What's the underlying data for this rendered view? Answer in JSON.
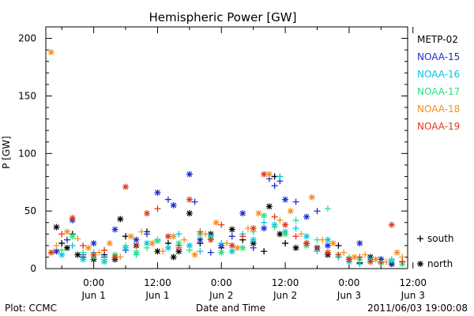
{
  "chart_data": {
    "type": "scatter",
    "title": "Hemispheric Power [GW]",
    "ylabel": "P [GW]",
    "xlabel": "Date and Time",
    "ylim": [
      0,
      210
    ],
    "y_ticks": [
      0,
      50,
      100,
      150,
      200
    ],
    "xlim_hours": [
      -9,
      59
    ],
    "x_ticks": [
      {
        "hours": 0,
        "time": "0:00",
        "date": "Jun 1"
      },
      {
        "hours": 12,
        "time": "12:00",
        "date": "Jun 1"
      },
      {
        "hours": 24,
        "time": "0:00",
        "date": "Jun 2"
      },
      {
        "hours": 36,
        "time": "12:00",
        "date": "Jun 2"
      },
      {
        "hours": 48,
        "time": "0:00",
        "date": "Jun 3"
      },
      {
        "hours": 60,
        "time": "12:00",
        "date": "Jun 3"
      }
    ],
    "hemisphere_markers": [
      {
        "symbol": "+",
        "label": "south"
      },
      {
        "symbol": "*",
        "label": "north"
      }
    ],
    "series": [
      {
        "name": "METP-02",
        "color": "#000000",
        "points": [
          [
            -7,
            36,
            "n"
          ],
          [
            -6,
            22,
            "s"
          ],
          [
            -5,
            18,
            "n"
          ],
          [
            -4,
            30,
            "s"
          ],
          [
            -3,
            12,
            "n"
          ],
          [
            -2,
            10,
            "s"
          ],
          [
            0,
            8,
            "n"
          ],
          [
            2,
            12,
            "s"
          ],
          [
            4,
            8,
            "n"
          ],
          [
            5,
            43,
            "n"
          ],
          [
            6,
            28,
            "s"
          ],
          [
            8,
            20,
            "n"
          ],
          [
            10,
            32,
            "s"
          ],
          [
            12,
            15,
            "n"
          ],
          [
            14,
            22,
            "s"
          ],
          [
            15,
            10,
            "n"
          ],
          [
            16,
            15,
            "n"
          ],
          [
            18,
            48,
            "n"
          ],
          [
            20,
            22,
            "s"
          ],
          [
            22,
            30,
            "n"
          ],
          [
            24,
            18,
            "s"
          ],
          [
            26,
            34,
            "n"
          ],
          [
            28,
            25,
            "s"
          ],
          [
            30,
            22,
            "n"
          ],
          [
            32,
            15,
            "s"
          ],
          [
            33,
            54,
            "n"
          ],
          [
            34,
            80,
            "s"
          ],
          [
            35,
            30,
            "n"
          ],
          [
            36,
            22,
            "s"
          ],
          [
            38,
            18,
            "n"
          ],
          [
            40,
            22,
            "s"
          ],
          [
            42,
            18,
            "n"
          ],
          [
            44,
            12,
            "n"
          ],
          [
            46,
            20,
            "s"
          ],
          [
            48,
            8,
            "n"
          ],
          [
            50,
            5,
            "s"
          ],
          [
            52,
            10,
            "n"
          ],
          [
            54,
            8,
            "s"
          ],
          [
            56,
            4,
            "n"
          ],
          [
            58,
            6,
            "s"
          ]
        ]
      },
      {
        "name": "NOAA-15",
        "color": "#1a2fcf",
        "points": [
          [
            -7,
            15,
            "n"
          ],
          [
            -5,
            25,
            "s"
          ],
          [
            -4,
            42,
            "n"
          ],
          [
            -2,
            12,
            "s"
          ],
          [
            0,
            22,
            "n"
          ],
          [
            2,
            10,
            "s"
          ],
          [
            4,
            34,
            "n"
          ],
          [
            6,
            16,
            "s"
          ],
          [
            8,
            25,
            "n"
          ],
          [
            10,
            30,
            "s"
          ],
          [
            12,
            66,
            "n"
          ],
          [
            14,
            60,
            "s"
          ],
          [
            15,
            55,
            "n"
          ],
          [
            16,
            20,
            "s"
          ],
          [
            18,
            82,
            "n"
          ],
          [
            19,
            58,
            "s"
          ],
          [
            20,
            25,
            "n"
          ],
          [
            22,
            14,
            "s"
          ],
          [
            24,
            20,
            "n"
          ],
          [
            26,
            28,
            "s"
          ],
          [
            28,
            48,
            "n"
          ],
          [
            30,
            18,
            "s"
          ],
          [
            32,
            35,
            "n"
          ],
          [
            33,
            78,
            "s"
          ],
          [
            34,
            72,
            "s"
          ],
          [
            35,
            76,
            "s"
          ],
          [
            36,
            60,
            "n"
          ],
          [
            38,
            58,
            "s"
          ],
          [
            40,
            45,
            "n"
          ],
          [
            42,
            50,
            "s"
          ],
          [
            44,
            20,
            "n"
          ],
          [
            46,
            10,
            "s"
          ],
          [
            48,
            8,
            "n"
          ],
          [
            50,
            22,
            "n"
          ],
          [
            52,
            6,
            "s"
          ],
          [
            54,
            8,
            "n"
          ],
          [
            56,
            4,
            "s"
          ]
        ]
      },
      {
        "name": "NOAA-16",
        "color": "#00c8e6",
        "points": [
          [
            -6,
            12,
            "n"
          ],
          [
            -4,
            20,
            "s"
          ],
          [
            -2,
            8,
            "n"
          ],
          [
            0,
            14,
            "s"
          ],
          [
            2,
            6,
            "n"
          ],
          [
            4,
            10,
            "s"
          ],
          [
            6,
            18,
            "n"
          ],
          [
            8,
            12,
            "s"
          ],
          [
            10,
            22,
            "n"
          ],
          [
            12,
            25,
            "s"
          ],
          [
            14,
            18,
            "n"
          ],
          [
            16,
            30,
            "s"
          ],
          [
            18,
            20,
            "n"
          ],
          [
            20,
            15,
            "s"
          ],
          [
            22,
            28,
            "n"
          ],
          [
            24,
            22,
            "s"
          ],
          [
            26,
            15,
            "n"
          ],
          [
            28,
            30,
            "s"
          ],
          [
            30,
            25,
            "n"
          ],
          [
            32,
            40,
            "s"
          ],
          [
            34,
            38,
            "n"
          ],
          [
            35,
            80,
            "s"
          ],
          [
            36,
            32,
            "n"
          ],
          [
            38,
            35,
            "s"
          ],
          [
            40,
            28,
            "n"
          ],
          [
            42,
            15,
            "s"
          ],
          [
            44,
            25,
            "n"
          ],
          [
            46,
            10,
            "s"
          ],
          [
            48,
            6,
            "n"
          ],
          [
            50,
            4,
            "s"
          ],
          [
            52,
            8,
            "n"
          ],
          [
            54,
            5,
            "s"
          ],
          [
            56,
            7,
            "n"
          ]
        ]
      },
      {
        "name": "NOAA-17",
        "color": "#2ee080",
        "points": [
          [
            -6,
            16,
            "s"
          ],
          [
            -4,
            28,
            "n"
          ],
          [
            -2,
            14,
            "s"
          ],
          [
            0,
            10,
            "n"
          ],
          [
            2,
            8,
            "s"
          ],
          [
            4,
            12,
            "n"
          ],
          [
            6,
            20,
            "s"
          ],
          [
            8,
            14,
            "n"
          ],
          [
            10,
            18,
            "s"
          ],
          [
            12,
            24,
            "n"
          ],
          [
            14,
            28,
            "s"
          ],
          [
            16,
            22,
            "n"
          ],
          [
            18,
            16,
            "s"
          ],
          [
            20,
            30,
            "n"
          ],
          [
            22,
            26,
            "s"
          ],
          [
            24,
            14,
            "n"
          ],
          [
            26,
            20,
            "s"
          ],
          [
            28,
            18,
            "n"
          ],
          [
            30,
            32,
            "s"
          ],
          [
            32,
            46,
            "n"
          ],
          [
            34,
            36,
            "s"
          ],
          [
            36,
            30,
            "n"
          ],
          [
            38,
            42,
            "s"
          ],
          [
            40,
            20,
            "n"
          ],
          [
            42,
            25,
            "s"
          ],
          [
            44,
            52,
            "s"
          ],
          [
            46,
            12,
            "n"
          ],
          [
            48,
            10,
            "s"
          ],
          [
            50,
            8,
            "n"
          ],
          [
            52,
            6,
            "s"
          ],
          [
            54,
            5,
            "n"
          ],
          [
            56,
            8,
            "s"
          ],
          [
            58,
            4,
            "n"
          ]
        ]
      },
      {
        "name": "NOAA-18",
        "color": "#f5901e",
        "points": [
          [
            -8,
            188,
            "n"
          ],
          [
            -7,
            20,
            "s"
          ],
          [
            -5,
            32,
            "n"
          ],
          [
            -3,
            26,
            "s"
          ],
          [
            -1,
            18,
            "n"
          ],
          [
            1,
            14,
            "s"
          ],
          [
            3,
            22,
            "n"
          ],
          [
            5,
            10,
            "s"
          ],
          [
            7,
            28,
            "n"
          ],
          [
            9,
            32,
            "s"
          ],
          [
            11,
            22,
            "n"
          ],
          [
            13,
            15,
            "s"
          ],
          [
            15,
            28,
            "n"
          ],
          [
            17,
            25,
            "s"
          ],
          [
            19,
            12,
            "n"
          ],
          [
            21,
            30,
            "s"
          ],
          [
            23,
            40,
            "n"
          ],
          [
            25,
            22,
            "s"
          ],
          [
            27,
            18,
            "n"
          ],
          [
            29,
            35,
            "s"
          ],
          [
            31,
            48,
            "n"
          ],
          [
            33,
            82,
            "n"
          ],
          [
            35,
            42,
            "s"
          ],
          [
            37,
            50,
            "n"
          ],
          [
            39,
            30,
            "s"
          ],
          [
            41,
            62,
            "n"
          ],
          [
            43,
            25,
            "s"
          ],
          [
            45,
            22,
            "n"
          ],
          [
            47,
            14,
            "s"
          ],
          [
            49,
            10,
            "n"
          ],
          [
            51,
            12,
            "s"
          ],
          [
            53,
            8,
            "n"
          ],
          [
            55,
            6,
            "s"
          ],
          [
            57,
            14,
            "n"
          ],
          [
            58,
            10,
            "s"
          ]
        ]
      },
      {
        "name": "NOAA-19",
        "color": "#e03a1a",
        "points": [
          [
            -8,
            14,
            "n"
          ],
          [
            -6,
            30,
            "s"
          ],
          [
            -4,
            44,
            "n"
          ],
          [
            -2,
            20,
            "s"
          ],
          [
            0,
            12,
            "n"
          ],
          [
            2,
            16,
            "s"
          ],
          [
            4,
            10,
            "n"
          ],
          [
            6,
            71,
            "n"
          ],
          [
            8,
            20,
            "s"
          ],
          [
            10,
            48,
            "n"
          ],
          [
            12,
            52,
            "s"
          ],
          [
            14,
            28,
            "n"
          ],
          [
            16,
            18,
            "s"
          ],
          [
            18,
            60,
            "n"
          ],
          [
            20,
            32,
            "s"
          ],
          [
            22,
            25,
            "n"
          ],
          [
            24,
            38,
            "s"
          ],
          [
            26,
            20,
            "n"
          ],
          [
            28,
            28,
            "s"
          ],
          [
            30,
            35,
            "n"
          ],
          [
            32,
            82,
            "n"
          ],
          [
            34,
            45,
            "s"
          ],
          [
            36,
            38,
            "n"
          ],
          [
            38,
            28,
            "s"
          ],
          [
            40,
            22,
            "n"
          ],
          [
            42,
            18,
            "s"
          ],
          [
            44,
            14,
            "n"
          ],
          [
            46,
            12,
            "s"
          ],
          [
            48,
            8,
            "n"
          ],
          [
            50,
            10,
            "s"
          ],
          [
            52,
            6,
            "n"
          ],
          [
            54,
            5,
            "s"
          ],
          [
            56,
            38,
            "n"
          ],
          [
            58,
            6,
            "s"
          ]
        ]
      }
    ]
  },
  "footer": {
    "left": "Plot: CCMC",
    "timestamp": "2011/06/03 19:00:08"
  }
}
